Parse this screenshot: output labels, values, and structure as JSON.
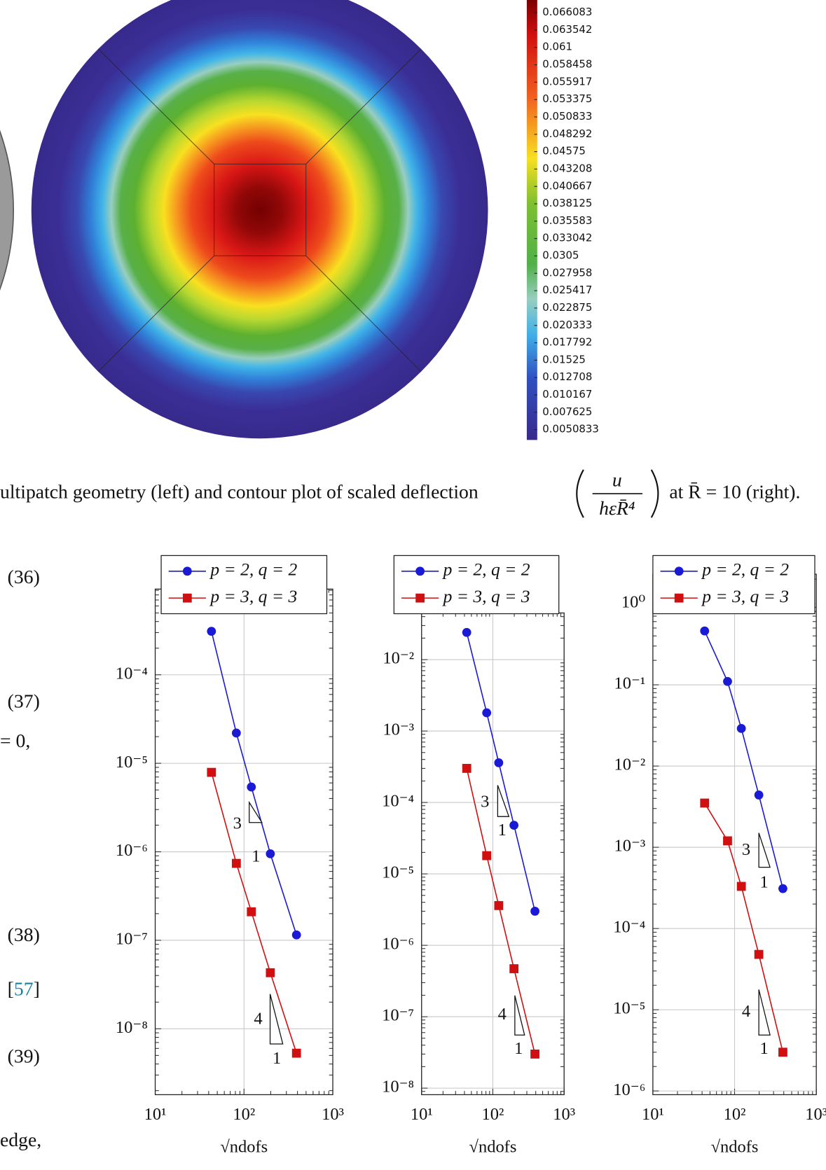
{
  "colorbar": {
    "labels": [
      "0.066083",
      "0.063542",
      "0.061",
      "0.058458",
      "0.055917",
      "0.053375",
      "0.050833",
      "0.048292",
      "0.04575",
      "0.043208",
      "0.040667",
      "0.038125",
      "0.035583",
      "0.033042",
      "0.0305",
      "0.027958",
      "0.025417",
      "0.022875",
      "0.020333",
      "0.017792",
      "0.01525",
      "0.012708",
      "0.010167",
      "0.007625",
      "0.0050833"
    ]
  },
  "caption": {
    "before": "ultipatch geometry (left) and contour plot of scaled deflection",
    "numerator": "u",
    "denominator": "hεR̄⁴",
    "after": "at R̄ = 10 (right)."
  },
  "margin": {
    "eq36": "(36)",
    "eq37": "(37)",
    "cond": "= 0,",
    "eq38": "(38)",
    "ref_open": "[",
    "ref": "57",
    "ref_close": "]",
    "eq39": "(39)",
    "last": "edge,"
  },
  "chart_data": [
    {
      "type": "line",
      "log_x": true,
      "log_y": true,
      "grid": true,
      "legend": "upper center",
      "xlabel": "√ndofs",
      "xlim": [
        10,
        1000
      ],
      "xticks": [
        {
          "value": 10,
          "label": "10¹"
        },
        {
          "value": 100,
          "label": "10²"
        },
        {
          "value": 1000,
          "label": "10³"
        }
      ],
      "ylim": [
        1.8e-09,
        0.00093
      ],
      "yticks": [
        {
          "value": 0.0001,
          "label": "10⁻⁴"
        },
        {
          "value": 1e-05,
          "label": "10⁻⁵"
        },
        {
          "value": 1e-06,
          "label": "10⁻⁶"
        },
        {
          "value": 1e-07,
          "label": "10⁻⁷"
        },
        {
          "value": 1e-08,
          "label": "10⁻⁸"
        }
      ],
      "x": [
        43,
        82,
        121,
        198,
        390
      ],
      "series": [
        {
          "name": "p = 2, q = 2",
          "color": "#1a1ad6",
          "marker": "circle",
          "values": [
            0.00031,
            2.2e-05,
            5.4e-06,
            9.5e-07,
            1.15e-07
          ]
        },
        {
          "name": "p = 3, q = 3",
          "color": "#d01010",
          "marker": "square",
          "values": [
            7.9e-06,
            7.4e-07,
            2.1e-07,
            4.3e-08,
            5.3e-09
          ]
        }
      ],
      "annotations": [
        "3",
        "1",
        "4",
        "1"
      ]
    },
    {
      "type": "line",
      "log_x": true,
      "log_y": true,
      "grid": true,
      "legend": "upper center",
      "xlabel": "√ndofs",
      "xlim": [
        10,
        1000
      ],
      "xticks": [
        {
          "value": 10,
          "label": "10¹"
        },
        {
          "value": 100,
          "label": "10²"
        },
        {
          "value": 1000,
          "label": "10³"
        }
      ],
      "ylim": [
        8.1e-09,
        0.045
      ],
      "yticks": [
        {
          "value": 0.01,
          "label": "10⁻²"
        },
        {
          "value": 0.001,
          "label": "10⁻³"
        },
        {
          "value": 0.0001,
          "label": "10⁻⁴"
        },
        {
          "value": 1e-05,
          "label": "10⁻⁵"
        },
        {
          "value": 1e-06,
          "label": "10⁻⁶"
        },
        {
          "value": 1e-07,
          "label": "10⁻⁷"
        },
        {
          "value": 1e-08,
          "label": "10⁻⁸"
        }
      ],
      "x": [
        43,
        82,
        121,
        198,
        390
      ],
      "series": [
        {
          "name": "p = 2, q = 2",
          "color": "#1a1ad6",
          "marker": "circle",
          "values": [
            0.024,
            0.0018,
            0.00036,
            4.8e-05,
            3e-06
          ]
        },
        {
          "name": "p = 3, q = 3",
          "color": "#d01010",
          "marker": "square",
          "values": [
            0.0003,
            1.8e-05,
            3.6e-06,
            4.7e-07,
            3e-08
          ]
        }
      ],
      "annotations": [
        "3",
        "1",
        "4",
        "1"
      ]
    },
    {
      "type": "line",
      "log_x": true,
      "log_y": true,
      "grid": true,
      "legend": "upper center",
      "xlabel": "√ndofs",
      "xlim": [
        10,
        1000
      ],
      "xticks": [
        {
          "value": 10,
          "label": "10¹"
        },
        {
          "value": 100,
          "label": "10²"
        },
        {
          "value": 1000,
          "label": "10³"
        }
      ],
      "ylim": [
        9e-07,
        2.3
      ],
      "yticks": [
        {
          "value": 1,
          "label": "10⁰"
        },
        {
          "value": 0.1,
          "label": "10⁻¹"
        },
        {
          "value": 0.01,
          "label": "10⁻²"
        },
        {
          "value": 0.001,
          "label": "10⁻³"
        },
        {
          "value": 0.0001,
          "label": "10⁻⁴"
        },
        {
          "value": 1e-05,
          "label": "10⁻⁵"
        },
        {
          "value": 1e-06,
          "label": "10⁻⁶"
        }
      ],
      "x": [
        43,
        82,
        121,
        198,
        390
      ],
      "series": [
        {
          "name": "p = 2, q = 2",
          "color": "#1a1ad6",
          "marker": "circle",
          "values": [
            0.46,
            0.11,
            0.029,
            0.0044,
            0.00031
          ]
        },
        {
          "name": "p = 3, q = 3",
          "color": "#d01010",
          "marker": "square",
          "values": [
            0.0035,
            0.0012,
            0.00033,
            4.8e-05,
            3e-06
          ]
        }
      ],
      "annotations": [
        "3",
        "1",
        "4",
        "1"
      ]
    }
  ]
}
